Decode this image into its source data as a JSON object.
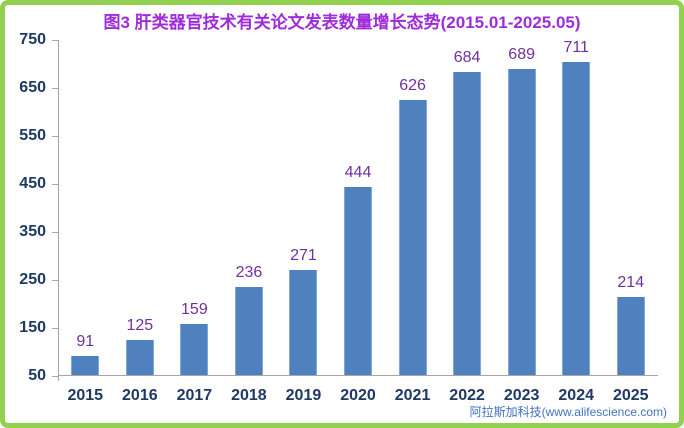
{
  "frame": {
    "border_color": "#92D050",
    "background": "#FFFFFF"
  },
  "header": {
    "title": "图3 肝类器官技术有关论文发表数量增长态势(2015.01-2025.05)",
    "title_color": "#9F2BDB"
  },
  "watermark": {
    "text": "阿拉斯加科技(www.alifescience.com)",
    "color": "#4472C4"
  },
  "chart_data": {
    "type": "bar",
    "title": "图3 肝类器官技术有关论文发表数量增长态势(2015.01-2025.05)",
    "categories": [
      "2015",
      "2016",
      "2017",
      "2018",
      "2019",
      "2020",
      "2021",
      "2022",
      "2023",
      "2024",
      "2025"
    ],
    "values": [
      91,
      125,
      159,
      236,
      271,
      444,
      626,
      684,
      689,
      711,
      214
    ],
    "xlabel": "",
    "ylabel": "",
    "ylim": [
      50,
      750
    ],
    "yticks": [
      750,
      650,
      550,
      450,
      350,
      250,
      150,
      50
    ],
    "grid": false,
    "legend": false,
    "value_labels_shown": true,
    "colors": {
      "bar": "#4E81BD",
      "bar_edge": "#7FA8D9",
      "value_label": "#7030A0",
      "axis_text": "#1F3864",
      "axis_line": "#A6A6A6"
    }
  }
}
